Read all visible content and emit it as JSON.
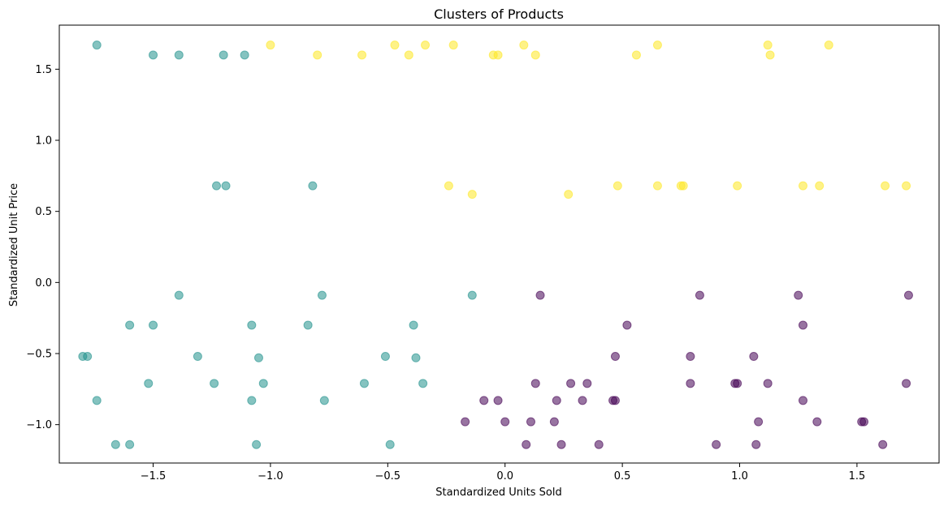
{
  "chart_data": {
    "type": "scatter",
    "title": "Clusters of Products",
    "xlabel": "Standardized Units Sold",
    "ylabel": "Standardized Unit Price",
    "xlim": [
      -1.9,
      1.85
    ],
    "ylim": [
      -1.27,
      1.81
    ],
    "xticks": [
      -1.5,
      -1.0,
      -0.5,
      0.0,
      0.5,
      1.0,
      1.5
    ],
    "xtick_labels": [
      "−1.5",
      "−1.0",
      "−0.5",
      "0.0",
      "0.5",
      "1.0",
      "1.5"
    ],
    "yticks": [
      -1.0,
      -0.5,
      0.0,
      0.5,
      1.0,
      1.5
    ],
    "ytick_labels": [
      "−1.0",
      "−0.5",
      "0.0",
      "0.5",
      "1.0",
      "1.5"
    ],
    "grid": false,
    "series": [
      {
        "color": "#440154",
        "points": [
          [
            0.15,
            -0.09
          ],
          [
            0.83,
            -0.09
          ],
          [
            1.25,
            -0.09
          ],
          [
            1.72,
            -0.09
          ],
          [
            0.52,
            -0.3
          ],
          [
            1.27,
            -0.3
          ],
          [
            0.47,
            -0.52
          ],
          [
            0.79,
            -0.52
          ],
          [
            1.06,
            -0.52
          ],
          [
            0.13,
            -0.71
          ],
          [
            0.28,
            -0.71
          ],
          [
            0.35,
            -0.71
          ],
          [
            0.79,
            -0.71
          ],
          [
            0.98,
            -0.71
          ],
          [
            0.99,
            -0.71
          ],
          [
            1.12,
            -0.71
          ],
          [
            1.71,
            -0.71
          ],
          [
            -0.09,
            -0.83
          ],
          [
            -0.03,
            -0.83
          ],
          [
            0.22,
            -0.83
          ],
          [
            0.33,
            -0.83
          ],
          [
            0.46,
            -0.83
          ],
          [
            0.47,
            -0.83
          ],
          [
            1.27,
            -0.83
          ],
          [
            -0.17,
            -0.98
          ],
          [
            0.0,
            -0.98
          ],
          [
            0.11,
            -0.98
          ],
          [
            0.21,
            -0.98
          ],
          [
            1.08,
            -0.98
          ],
          [
            1.33,
            -0.98
          ],
          [
            1.52,
            -0.98
          ],
          [
            1.53,
            -0.98
          ],
          [
            0.09,
            -1.14
          ],
          [
            0.24,
            -1.14
          ],
          [
            0.4,
            -1.14
          ],
          [
            0.9,
            -1.14
          ],
          [
            1.07,
            -1.14
          ],
          [
            1.61,
            -1.14
          ]
        ]
      },
      {
        "color": "#21918c",
        "points": [
          [
            -1.74,
            1.67
          ],
          [
            -1.5,
            1.6
          ],
          [
            -1.39,
            1.6
          ],
          [
            -1.2,
            1.6
          ],
          [
            -1.11,
            1.6
          ],
          [
            -1.23,
            0.68
          ],
          [
            -1.19,
            0.68
          ],
          [
            -0.82,
            0.68
          ],
          [
            -1.39,
            -0.09
          ],
          [
            -0.78,
            -0.09
          ],
          [
            -0.14,
            -0.09
          ],
          [
            -1.6,
            -0.3
          ],
          [
            -1.5,
            -0.3
          ],
          [
            -1.08,
            -0.3
          ],
          [
            -0.84,
            -0.3
          ],
          [
            -0.39,
            -0.3
          ],
          [
            -1.8,
            -0.52
          ],
          [
            -1.78,
            -0.52
          ],
          [
            -1.31,
            -0.52
          ],
          [
            -1.05,
            -0.53
          ],
          [
            -0.51,
            -0.52
          ],
          [
            -0.38,
            -0.53
          ],
          [
            -1.52,
            -0.71
          ],
          [
            -1.24,
            -0.71
          ],
          [
            -1.03,
            -0.71
          ],
          [
            -0.6,
            -0.71
          ],
          [
            -0.35,
            -0.71
          ],
          [
            -1.74,
            -0.83
          ],
          [
            -1.08,
            -0.83
          ],
          [
            -0.77,
            -0.83
          ],
          [
            -1.66,
            -1.14
          ],
          [
            -1.6,
            -1.14
          ],
          [
            -1.06,
            -1.14
          ],
          [
            -0.49,
            -1.14
          ]
        ]
      },
      {
        "color": "#fde725",
        "points": [
          [
            -1.0,
            1.67
          ],
          [
            -0.47,
            1.67
          ],
          [
            -0.34,
            1.67
          ],
          [
            -0.22,
            1.67
          ],
          [
            0.08,
            1.67
          ],
          [
            0.65,
            1.67
          ],
          [
            1.12,
            1.67
          ],
          [
            1.38,
            1.67
          ],
          [
            -0.8,
            1.6
          ],
          [
            -0.61,
            1.6
          ],
          [
            -0.41,
            1.6
          ],
          [
            -0.05,
            1.6
          ],
          [
            -0.03,
            1.6
          ],
          [
            0.13,
            1.6
          ],
          [
            0.56,
            1.6
          ],
          [
            1.13,
            1.6
          ],
          [
            -0.24,
            0.68
          ],
          [
            0.48,
            0.68
          ],
          [
            0.65,
            0.68
          ],
          [
            0.75,
            0.68
          ],
          [
            0.76,
            0.68
          ],
          [
            0.99,
            0.68
          ],
          [
            1.27,
            0.68
          ],
          [
            1.34,
            0.68
          ],
          [
            1.62,
            0.68
          ],
          [
            1.71,
            0.68
          ],
          [
            -0.14,
            0.62
          ],
          [
            0.27,
            0.62
          ]
        ]
      }
    ]
  }
}
